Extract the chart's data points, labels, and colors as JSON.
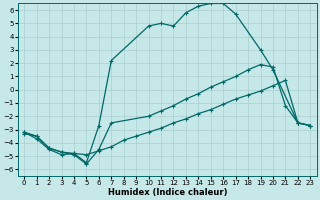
{
  "xlabel": "Humidex (Indice chaleur)",
  "bg_color": "#c6e8e8",
  "line_color": "#006868",
  "grid_color": "#aacece",
  "xlim": [
    -0.5,
    23.5
  ],
  "ylim": [
    -6.5,
    6.5
  ],
  "xticks": [
    0,
    1,
    2,
    3,
    4,
    5,
    6,
    7,
    8,
    9,
    10,
    11,
    12,
    13,
    14,
    15,
    16,
    17,
    18,
    19,
    20,
    21,
    22,
    23
  ],
  "yticks": [
    -6,
    -5,
    -4,
    -3,
    -2,
    -1,
    0,
    1,
    2,
    3,
    4,
    5,
    6
  ],
  "line1_x": [
    0,
    1,
    2,
    3,
    4,
    5,
    6,
    7,
    10,
    11,
    12,
    13,
    14,
    15,
    16,
    17,
    19,
    20,
    22,
    23
  ],
  "line1_y": [
    -3.2,
    -3.7,
    -4.5,
    -4.9,
    -4.8,
    -5.5,
    -2.7,
    2.2,
    4.8,
    5.0,
    4.8,
    5.8,
    6.3,
    6.5,
    6.5,
    5.7,
    3.0,
    1.5,
    -2.5,
    -2.7
  ],
  "line2_x": [
    0,
    1,
    2,
    3,
    4,
    5,
    6,
    7,
    10,
    11,
    12,
    13,
    14,
    15,
    16,
    17,
    18,
    19,
    20,
    21,
    22,
    23
  ],
  "line2_y": [
    -3.2,
    -3.5,
    -4.4,
    -4.7,
    -4.9,
    -5.6,
    -4.5,
    -2.5,
    -2.0,
    -1.6,
    -1.2,
    -0.7,
    -0.3,
    0.2,
    0.6,
    1.0,
    1.5,
    1.9,
    1.7,
    -1.2,
    -2.5,
    -2.7
  ],
  "line3_x": [
    0,
    1,
    2,
    3,
    4,
    5,
    6,
    7,
    8,
    9,
    10,
    11,
    12,
    13,
    14,
    15,
    16,
    17,
    18,
    19,
    20,
    21,
    22,
    23
  ],
  "line3_y": [
    -3.3,
    -3.5,
    -4.4,
    -4.7,
    -4.8,
    -4.9,
    -4.6,
    -4.3,
    -3.8,
    -3.5,
    -3.2,
    -2.9,
    -2.5,
    -2.2,
    -1.8,
    -1.5,
    -1.1,
    -0.7,
    -0.4,
    -0.1,
    0.3,
    0.7,
    -2.5,
    -2.7
  ]
}
